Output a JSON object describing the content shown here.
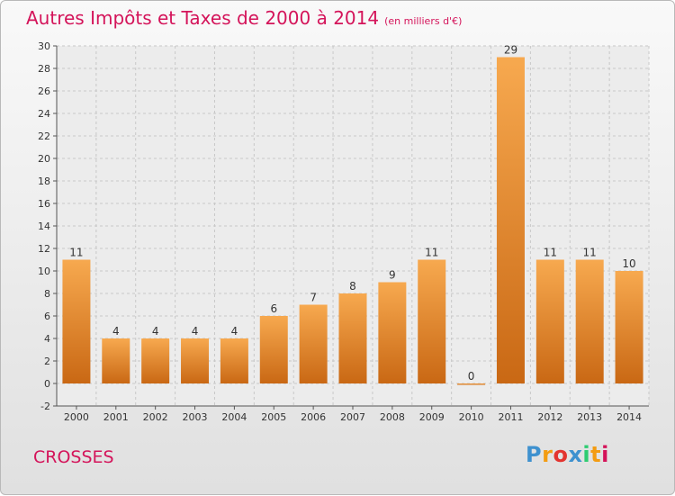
{
  "header": {
    "title": "Autres Impôts et Taxes de 2000 à 2014",
    "unit": "(en milliers d'€)"
  },
  "footer": {
    "commune": "CROSSES",
    "logo": [
      "P",
      "r",
      "o",
      "x",
      "i",
      "t",
      "i"
    ],
    "logo_colors": [
      "#3e91cf",
      "#f39c12",
      "#e3342f",
      "#3e91cf",
      "#2ecc71",
      "#f39c12",
      "#d4145a"
    ]
  },
  "colors": {
    "bar_light": "#f7a94f",
    "bar_dark": "#c96814",
    "title": "#d4145a"
  },
  "chart_data": {
    "type": "bar",
    "title": "Autres Impôts et Taxes de 2000 à 2014",
    "categories": [
      "2000",
      "2001",
      "2002",
      "2003",
      "2004",
      "2005",
      "2006",
      "2007",
      "2008",
      "2009",
      "2010",
      "2011",
      "2012",
      "2013",
      "2014"
    ],
    "values": [
      11,
      4,
      4,
      4,
      4,
      6,
      7,
      8,
      9,
      11,
      0,
      29,
      11,
      11,
      10
    ],
    "ylim": [
      -2,
      30
    ],
    "yticks": [
      -2,
      0,
      2,
      4,
      6,
      8,
      10,
      12,
      14,
      16,
      18,
      20,
      22,
      24,
      26,
      28,
      30
    ],
    "grid": true
  }
}
